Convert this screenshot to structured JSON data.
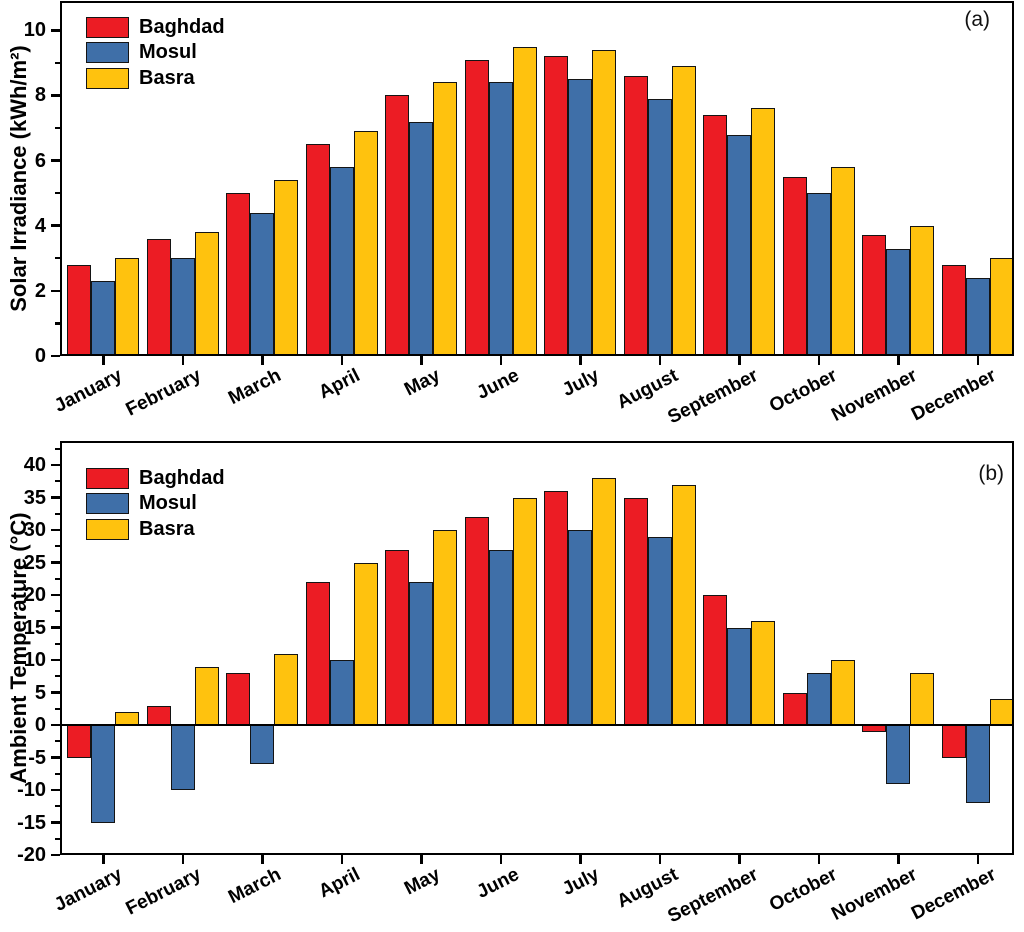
{
  "figure_background": "#FFFFFF",
  "axis_color": "#000000",
  "chart_data": [
    {
      "type": "bar",
      "panel": "(a)",
      "title": "",
      "xlabel": "",
      "ylabel": "Solar Irradiance (kWh/m²)",
      "categories": [
        "January",
        "February",
        "March",
        "April",
        "May",
        "June",
        "July",
        "August",
        "September",
        "October",
        "November",
        "December"
      ],
      "series": [
        {
          "name": "Baghdad",
          "color": "#EC1C24",
          "values": [
            2.8,
            3.6,
            5.0,
            6.5,
            8.0,
            9.1,
            9.2,
            8.6,
            7.4,
            5.5,
            3.7,
            2.8
          ]
        },
        {
          "name": "Mosul",
          "color": "#3F6FA8",
          "values": [
            2.3,
            3.0,
            4.4,
            5.8,
            7.2,
            8.4,
            8.5,
            7.9,
            6.8,
            5.0,
            3.3,
            2.4
          ]
        },
        {
          "name": "Basra",
          "color": "#FFC20E",
          "values": [
            3.0,
            3.8,
            5.4,
            6.9,
            8.4,
            9.5,
            9.4,
            8.9,
            7.6,
            5.8,
            4.0,
            3.0
          ]
        }
      ],
      "ylim": [
        0,
        10.9
      ],
      "y_major_ticks": [
        0,
        2,
        4,
        6,
        8,
        10
      ],
      "y_minor_ticks": [
        1,
        3,
        5,
        7,
        9
      ],
      "legend_position": "top-left",
      "grid": false
    },
    {
      "type": "bar",
      "panel": "(b)",
      "title": "",
      "xlabel": "",
      "ylabel": "Ambient Temperature (°C)",
      "categories": [
        "January",
        "February",
        "March",
        "April",
        "May",
        "June",
        "July",
        "August",
        "September",
        "October",
        "November",
        "December"
      ],
      "series": [
        {
          "name": "Baghdad",
          "color": "#EC1C24",
          "values": [
            -5,
            3,
            8,
            22,
            27,
            32,
            36,
            35,
            20,
            5,
            -1,
            -5
          ]
        },
        {
          "name": "Mosul",
          "color": "#3F6FA8",
          "values": [
            -15,
            -10,
            -6,
            10,
            22,
            27,
            30,
            29,
            15,
            8,
            -9,
            -12
          ]
        },
        {
          "name": "Basra",
          "color": "#FFC20E",
          "values": [
            2,
            9,
            11,
            25,
            30,
            35,
            38,
            37,
            16,
            10,
            8,
            4
          ]
        }
      ],
      "ylim": [
        -20,
        43.7
      ],
      "y_major_ticks": [
        -20,
        -15,
        -10,
        -5,
        0,
        5,
        10,
        15,
        20,
        25,
        30,
        35,
        40
      ],
      "y_minor_ticks": [
        -17.5,
        -12.5,
        -7.5,
        -2.5,
        2.5,
        7.5,
        12.5,
        17.5,
        22.5,
        27.5,
        32.5,
        37.5,
        42.5
      ],
      "legend_position": "top-left",
      "grid": false
    }
  ]
}
